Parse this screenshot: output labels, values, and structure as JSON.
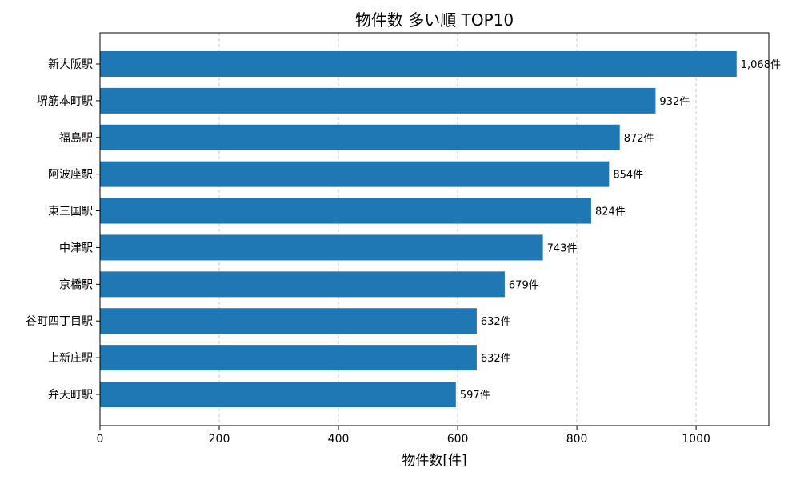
{
  "chart_data": {
    "type": "bar",
    "orientation": "horizontal",
    "title": "物件数 多い順 TOP10",
    "xlabel": "物件数[件]",
    "ylabel": "",
    "categories": [
      "新大阪駅",
      "堺筋本町駅",
      "福島駅",
      "阿波座駅",
      "東三国駅",
      "中津駅",
      "京橋駅",
      "谷町四丁目駅",
      "上新庄駅",
      "弁天町駅"
    ],
    "values": [
      1068,
      932,
      872,
      854,
      824,
      743,
      679,
      632,
      632,
      597
    ],
    "data_labels": [
      "1,068件",
      "932件",
      "872件",
      "854件",
      "824件",
      "743件",
      "679件",
      "632件",
      "632件",
      "597件"
    ],
    "xlim": [
      0,
      1122
    ],
    "xticks": [
      0,
      200,
      400,
      600,
      800,
      1000
    ],
    "xtick_labels": [
      "0",
      "200",
      "400",
      "600",
      "800",
      "1000"
    ],
    "grid": "x-dashed",
    "bar_color": "#1f77b4",
    "grid_color": "#cccccc"
  }
}
